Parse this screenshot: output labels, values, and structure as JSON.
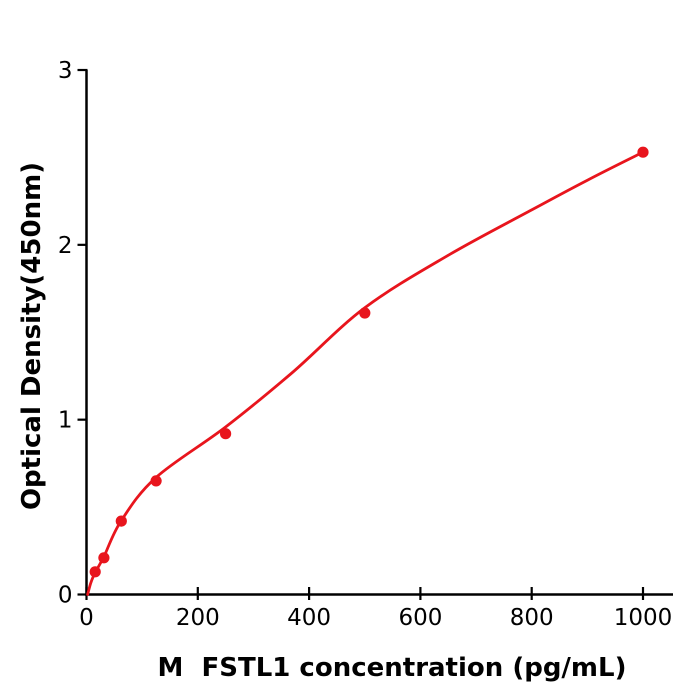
{
  "figure": {
    "background_color": "#ffffff",
    "text_color": "#000000",
    "accent_color": "#e8151d"
  },
  "chart_data": {
    "type": "scatter",
    "title": "",
    "xlabel": "M  FSTL1 concentration (pg/mL)",
    "ylabel": "Optical Density(450nm)",
    "xlim": [
      0,
      1055
    ],
    "ylim": [
      0,
      3
    ],
    "x_ticks": [
      0,
      200,
      400,
      600,
      800,
      1000
    ],
    "y_ticks": [
      0,
      1,
      2,
      3
    ],
    "grid": false,
    "legend_position": "none",
    "series": [
      {
        "name": "standard-points",
        "type": "scatter",
        "color": "#e8151d",
        "marker": "circle",
        "points": [
          [
            15.6,
            0.13
          ],
          [
            31.25,
            0.21
          ],
          [
            62.5,
            0.42
          ],
          [
            125,
            0.65
          ],
          [
            250,
            0.92
          ],
          [
            500,
            1.61
          ],
          [
            1000,
            2.53
          ]
        ]
      },
      {
        "name": "fit-curve",
        "type": "line",
        "color": "#e8151d",
        "points": [
          [
            2,
            0.0
          ],
          [
            8,
            0.07
          ],
          [
            15.6,
            0.125
          ],
          [
            31,
            0.215
          ],
          [
            62,
            0.42
          ],
          [
            125,
            0.67
          ],
          [
            250,
            0.958
          ],
          [
            370,
            1.27
          ],
          [
            500,
            1.64
          ],
          [
            650,
            1.94
          ],
          [
            800,
            2.2
          ],
          [
            900,
            2.37
          ],
          [
            1000,
            2.53
          ]
        ]
      }
    ]
  }
}
